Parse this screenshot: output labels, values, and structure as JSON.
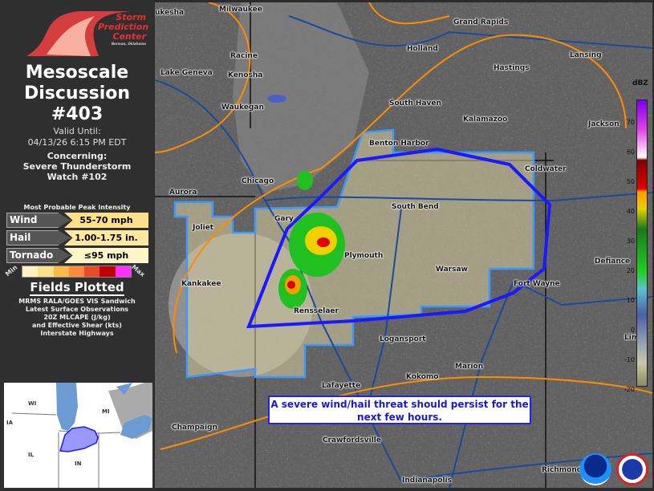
{
  "header": {
    "logo_text": [
      "Storm",
      "Prediction",
      "Center"
    ],
    "logo_subtext": "Norman, Oklahoma",
    "title_lines": [
      "Mesoscale",
      "Discussion",
      "#403"
    ],
    "valid_label": "Valid Until:",
    "valid_time": "04/13/26 6:15 PM EDT",
    "concerning_label": "Concerning:",
    "concerning_lines": [
      "Severe Thunderstorm",
      "Watch #102"
    ]
  },
  "intensity": {
    "heading": "Most Probable Peak Intensity",
    "rows": [
      {
        "label": "Wind",
        "value": "55-70 mph",
        "color": "#ffe08a"
      },
      {
        "label": "Hail",
        "value": "1.00-1.75 in.",
        "color": "#ffe9a0"
      },
      {
        "label": "Tornado",
        "value": "≤95 mph",
        "color": "#fff6c8"
      }
    ],
    "scale_min": "Min",
    "scale_max": "Max",
    "scale_colors": [
      "#fff4c0",
      "#ffe08a",
      "#ffb84a",
      "#ff8a3a",
      "#e84a2a",
      "#c00000",
      "#ff30ff"
    ]
  },
  "fields": {
    "heading": "Fields Plotted",
    "lines": [
      "MRMS RALA/GOES VIS Sandwich",
      "Latest Surface Observations",
      "20Z MLCAPE (J/kg)",
      "and Effective Shear (kts)",
      "Interstate Highways"
    ]
  },
  "inset": {
    "states": [
      "WI",
      "MI",
      "IA",
      "IL",
      "IN"
    ]
  },
  "map": {
    "cities": [
      "ukesha",
      "Milwaukee",
      "Grand Rapids",
      "Holland",
      "Lansing",
      "Racine",
      "Lake Geneva",
      "Kenosha",
      "Hastings",
      "South Haven",
      "Waukegan",
      "Kalamazoo",
      "Jackson",
      "Benton Harbor",
      "Coldwater",
      "Chicago",
      "Aurora",
      "South Bend",
      "Gary",
      "Joliet",
      "Plymouth",
      "Defiance",
      "Warsaw",
      "Fort Wayne",
      "Kankakee",
      "Rensselaer",
      "Logansport",
      "Lim",
      "Marion",
      "Kokomo",
      "Lafayette",
      "Champaign",
      "Crawfordsville",
      "Indianapolis",
      "Richmond"
    ],
    "note": "A severe wind/hail threat should persist for the next few hours.",
    "colorbar_unit": "dBZ",
    "colorbar_ticks": [
      "70",
      "60",
      "50",
      "40",
      "30",
      "20",
      "10",
      "0",
      "-10",
      "-20"
    ],
    "colors": {
      "md_polygon": "#1a1aff",
      "watch_outline": "#3a9aff",
      "cape_contours": "#ff8c00",
      "highways": "#1a4aa0"
    }
  }
}
